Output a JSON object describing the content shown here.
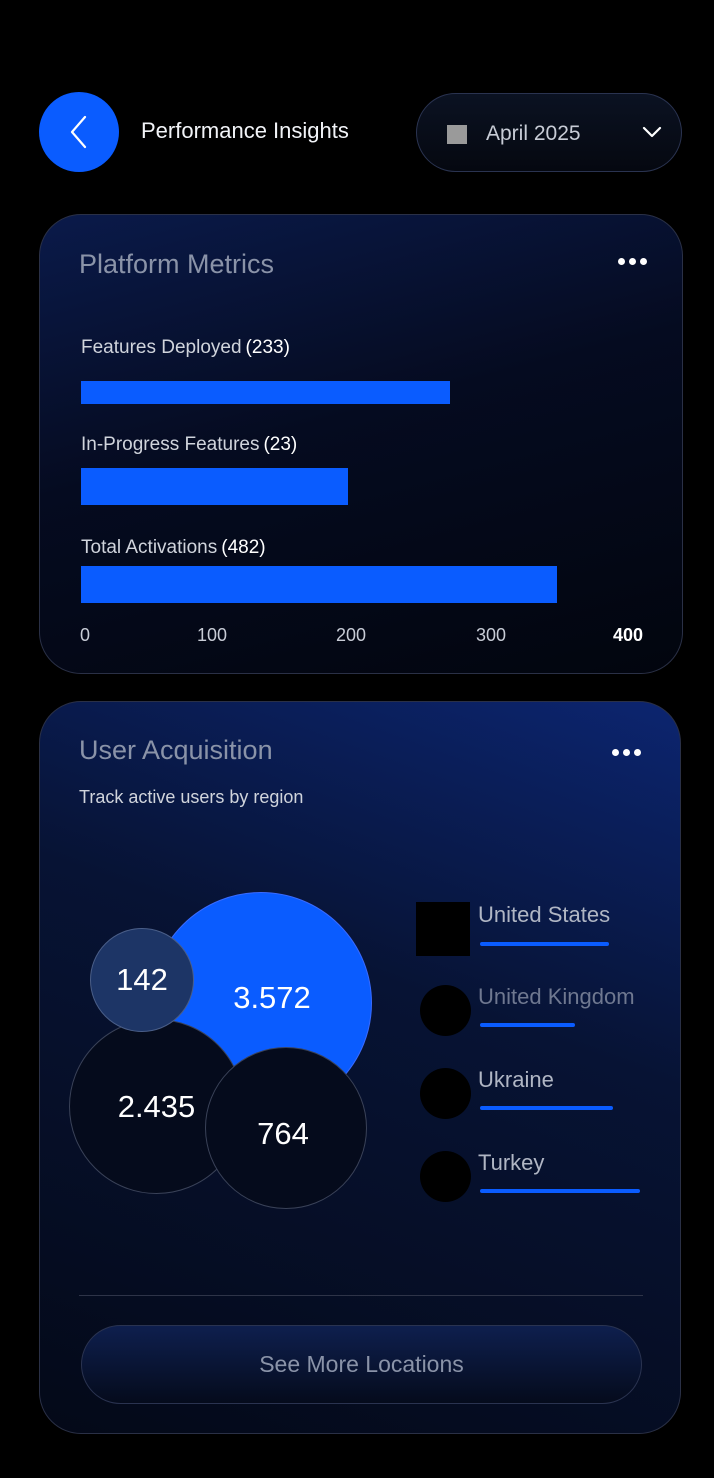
{
  "header": {
    "title": "Performance Insights",
    "date_select": {
      "value": "April 2025"
    }
  },
  "platform_metrics": {
    "title": "Platform Metrics",
    "chart_data": {
      "type": "bar",
      "orientation": "horizontal",
      "categories": [
        "Features Deployed",
        "In-Progress Features",
        "Total Activations"
      ],
      "counts": [
        "(233)",
        "(23)",
        "(482)"
      ],
      "values": [
        270,
        195,
        348
      ],
      "xticks": [
        "0",
        "100",
        "200",
        "300",
        "400"
      ],
      "xlim": [
        0,
        400
      ],
      "bar_color": "#0a5cff"
    }
  },
  "user_acquisition": {
    "title": "User Acquisition",
    "subtitle": "Track active users by region",
    "bubbles": [
      {
        "value": "3.572",
        "color": "#0a5cff"
      },
      {
        "value": "2.435",
        "color": "#050b1c"
      },
      {
        "value": "764",
        "color": "#050b1c"
      },
      {
        "value": "142",
        "color": "#1d3566"
      }
    ],
    "legend": [
      {
        "label": "United States",
        "share": 0.68
      },
      {
        "label": "United Kingdom",
        "share": 0.5
      },
      {
        "label": "Ukraine",
        "share": 0.7
      },
      {
        "label": "Turkey",
        "share": 0.84
      }
    ],
    "see_more_label": "See More Locations"
  },
  "colors": {
    "accent": "#0a5cff",
    "background": "#000000"
  }
}
